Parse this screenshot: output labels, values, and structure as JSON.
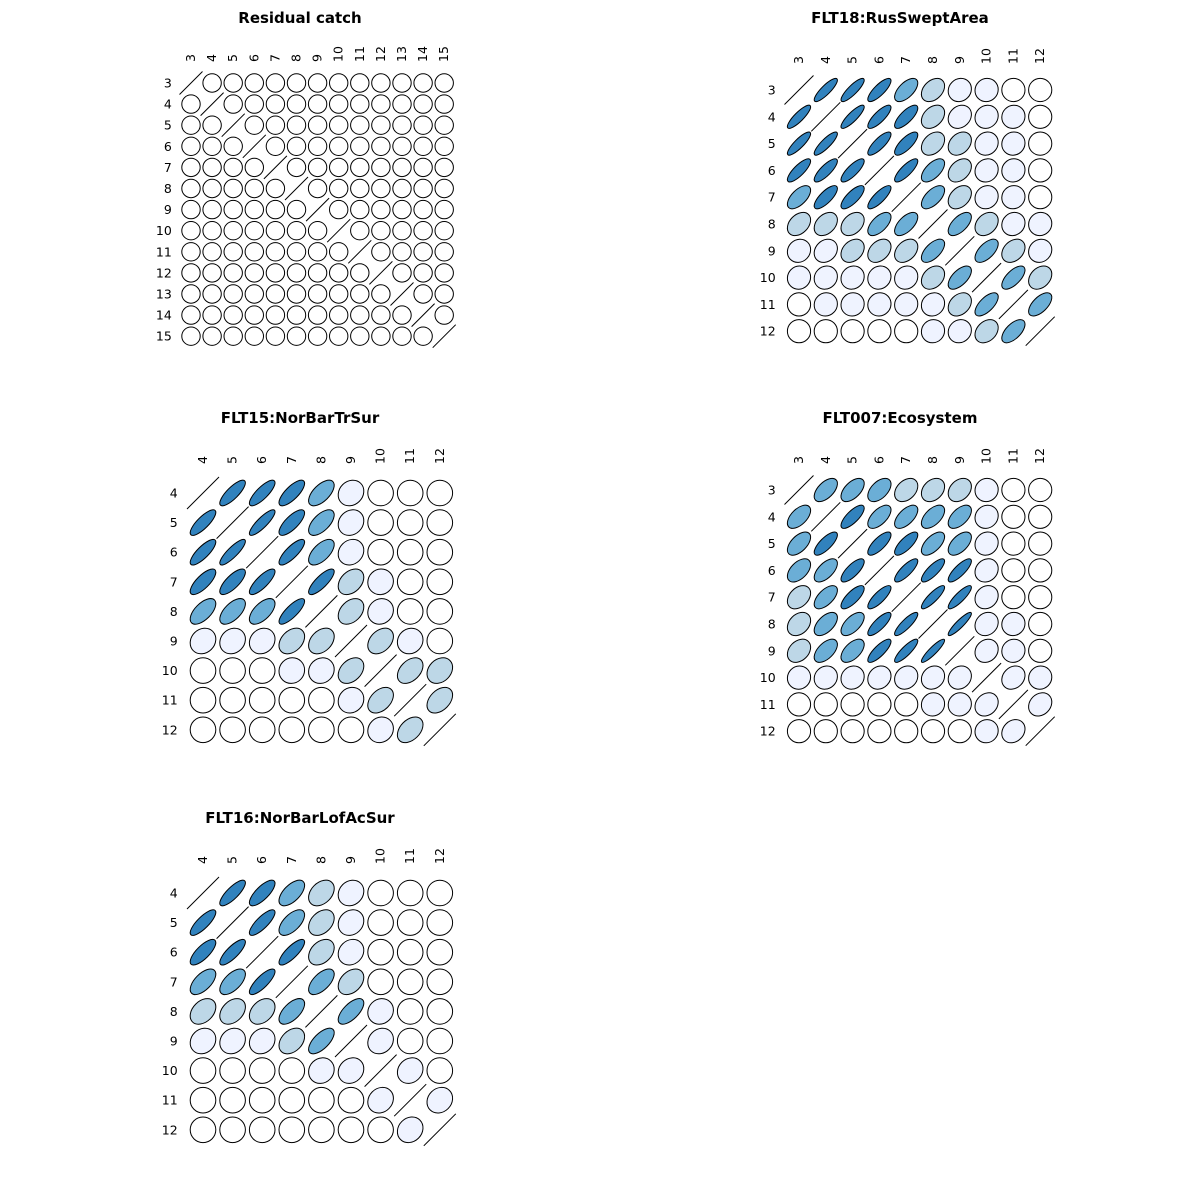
{
  "chart_data": [
    {
      "type": "heatmap",
      "title": "Residual catch",
      "labels": [
        "3",
        "4",
        "5",
        "6",
        "7",
        "8",
        "9",
        "10",
        "11",
        "12",
        "13",
        "14",
        "15"
      ],
      "matrix": [
        [
          1,
          0,
          0,
          0,
          0,
          0,
          0,
          0,
          0,
          0,
          0,
          0,
          0
        ],
        [
          0,
          1,
          0,
          0,
          0,
          0,
          0,
          0,
          0,
          0,
          0,
          0,
          0
        ],
        [
          0,
          0,
          1,
          0,
          0,
          0,
          0,
          0,
          0,
          0,
          0,
          0,
          0
        ],
        [
          0,
          0,
          0,
          1,
          0,
          0,
          0,
          0,
          0,
          0,
          0,
          0,
          0
        ],
        [
          0,
          0,
          0,
          0,
          1,
          0,
          0,
          0,
          0,
          0,
          0,
          0,
          0
        ],
        [
          0,
          0,
          0,
          0,
          0,
          1,
          0,
          0,
          0,
          0,
          0,
          0,
          0
        ],
        [
          0,
          0,
          0,
          0,
          0,
          0,
          1,
          0,
          0,
          0,
          0,
          0,
          0
        ],
        [
          0,
          0,
          0,
          0,
          0,
          0,
          0,
          1,
          0,
          0,
          0,
          0,
          0
        ],
        [
          0,
          0,
          0,
          0,
          0,
          0,
          0,
          0,
          1,
          0,
          0,
          0,
          0
        ],
        [
          0,
          0,
          0,
          0,
          0,
          0,
          0,
          0,
          0,
          1,
          0,
          0,
          0
        ],
        [
          0,
          0,
          0,
          0,
          0,
          0,
          0,
          0,
          0,
          0,
          1,
          0,
          0
        ],
        [
          0,
          0,
          0,
          0,
          0,
          0,
          0,
          0,
          0,
          0,
          0,
          1,
          0
        ],
        [
          0,
          0,
          0,
          0,
          0,
          0,
          0,
          0,
          0,
          0,
          0,
          0,
          1
        ]
      ]
    },
    {
      "type": "heatmap",
      "title": "FLT18:RusSweptArea",
      "labels": [
        "3",
        "4",
        "5",
        "6",
        "7",
        "8",
        "9",
        "10",
        "11",
        "12"
      ],
      "matrix": [
        [
          1,
          0.85,
          0.85,
          0.8,
          0.6,
          0.35,
          0.1,
          0.05,
          0,
          0
        ],
        [
          0.85,
          1,
          0.85,
          0.8,
          0.75,
          0.35,
          0.2,
          0.1,
          0.05,
          0
        ],
        [
          0.85,
          0.85,
          1,
          0.8,
          0.75,
          0.35,
          0.3,
          0.1,
          0.05,
          0
        ],
        [
          0.8,
          0.8,
          0.8,
          1,
          0.8,
          0.6,
          0.35,
          0.1,
          0.05,
          0
        ],
        [
          0.6,
          0.75,
          0.75,
          0.8,
          1,
          0.6,
          0.35,
          0.1,
          0.05,
          0
        ],
        [
          0.35,
          0.35,
          0.35,
          0.6,
          0.6,
          1,
          0.6,
          0.3,
          0.1,
          0.05
        ],
        [
          0.1,
          0.2,
          0.3,
          0.35,
          0.35,
          0.6,
          1,
          0.6,
          0.3,
          0.1
        ],
        [
          0.05,
          0.1,
          0.1,
          0.1,
          0.1,
          0.3,
          0.6,
          1,
          0.65,
          0.3
        ],
        [
          0,
          0.05,
          0.05,
          0.05,
          0.05,
          0.1,
          0.3,
          0.65,
          1,
          0.6
        ],
        [
          0,
          0,
          0,
          0,
          0,
          0.05,
          0.1,
          0.3,
          0.6,
          1
        ]
      ]
    },
    {
      "type": "heatmap",
      "title": "FLT15:NorBarTrSur",
      "labels": [
        "4",
        "5",
        "6",
        "7",
        "8",
        "9",
        "10",
        "11",
        "12"
      ],
      "matrix": [
        [
          1,
          0.8,
          0.8,
          0.75,
          0.6,
          0.15,
          0,
          0,
          0
        ],
        [
          0.8,
          1,
          0.85,
          0.75,
          0.6,
          0.15,
          0,
          0,
          0
        ],
        [
          0.8,
          0.85,
          1,
          0.8,
          0.6,
          0.15,
          0,
          0,
          0
        ],
        [
          0.75,
          0.75,
          0.8,
          1,
          0.8,
          0.35,
          0.05,
          0,
          0
        ],
        [
          0.6,
          0.6,
          0.6,
          0.8,
          1,
          0.35,
          0.1,
          0,
          0
        ],
        [
          0.15,
          0.15,
          0.15,
          0.35,
          0.35,
          1,
          0.35,
          0.1,
          0
        ],
        [
          0,
          0,
          0,
          0.05,
          0.1,
          0.35,
          1,
          0.4,
          0.25
        ],
        [
          0,
          0,
          0,
          0,
          0,
          0.1,
          0.4,
          1,
          0.4
        ],
        [
          0,
          0,
          0,
          0,
          0,
          0,
          0.1,
          0.4,
          1
        ]
      ]
    },
    {
      "type": "heatmap",
      "title": "FLT007:Ecosystem",
      "labels": [
        "3",
        "4",
        "5",
        "6",
        "7",
        "8",
        "9",
        "10",
        "11",
        "12"
      ],
      "matrix": [
        [
          1,
          0.55,
          0.55,
          0.5,
          0.35,
          0.3,
          0.3,
          0.05,
          0,
          0
        ],
        [
          0.55,
          1,
          0.75,
          0.6,
          0.6,
          0.55,
          0.55,
          0.1,
          0,
          0
        ],
        [
          0.55,
          0.75,
          1,
          0.75,
          0.75,
          0.6,
          0.55,
          0.1,
          0,
          0
        ],
        [
          0.5,
          0.6,
          0.75,
          1,
          0.8,
          0.8,
          0.8,
          0.15,
          0,
          0
        ],
        [
          0.35,
          0.6,
          0.75,
          0.8,
          1,
          0.85,
          0.85,
          0.15,
          0,
          0
        ],
        [
          0.3,
          0.55,
          0.6,
          0.8,
          0.85,
          1,
          0.9,
          0.15,
          0.05,
          0
        ],
        [
          0.3,
          0.55,
          0.55,
          0.8,
          0.85,
          0.9,
          1,
          0.15,
          0.05,
          0
        ],
        [
          0.05,
          0.1,
          0.1,
          0.15,
          0.15,
          0.15,
          0.15,
          1,
          0.2,
          0.05
        ],
        [
          0,
          0,
          0,
          0,
          0,
          0.05,
          0.05,
          0.2,
          1,
          0.2
        ],
        [
          0,
          0,
          0,
          0,
          0,
          0,
          0,
          0.05,
          0.2,
          1
        ]
      ]
    },
    {
      "type": "heatmap",
      "title": "FLT16:NorBarLofAcSur",
      "labels": [
        "4",
        "5",
        "6",
        "7",
        "8",
        "9",
        "10",
        "11",
        "12"
      ],
      "matrix": [
        [
          1,
          0.8,
          0.75,
          0.6,
          0.35,
          0.15,
          0,
          0,
          0
        ],
        [
          0.8,
          1,
          0.8,
          0.6,
          0.35,
          0.15,
          0,
          0,
          0
        ],
        [
          0.75,
          0.8,
          1,
          0.8,
          0.35,
          0.15,
          0,
          0,
          0
        ],
        [
          0.6,
          0.6,
          0.8,
          1,
          0.6,
          0.35,
          0,
          0,
          0
        ],
        [
          0.35,
          0.35,
          0.35,
          0.6,
          1,
          0.65,
          0.1,
          0,
          0
        ],
        [
          0.15,
          0.15,
          0.15,
          0.35,
          0.65,
          1,
          0.15,
          0,
          0
        ],
        [
          0,
          0,
          0,
          0,
          0.1,
          0.15,
          1,
          0.15,
          0
        ],
        [
          0,
          0,
          0,
          0,
          0,
          0,
          0.15,
          1,
          0.15
        ],
        [
          0,
          0,
          0,
          0,
          0,
          0,
          0,
          0.15,
          1
        ]
      ]
    }
  ]
}
